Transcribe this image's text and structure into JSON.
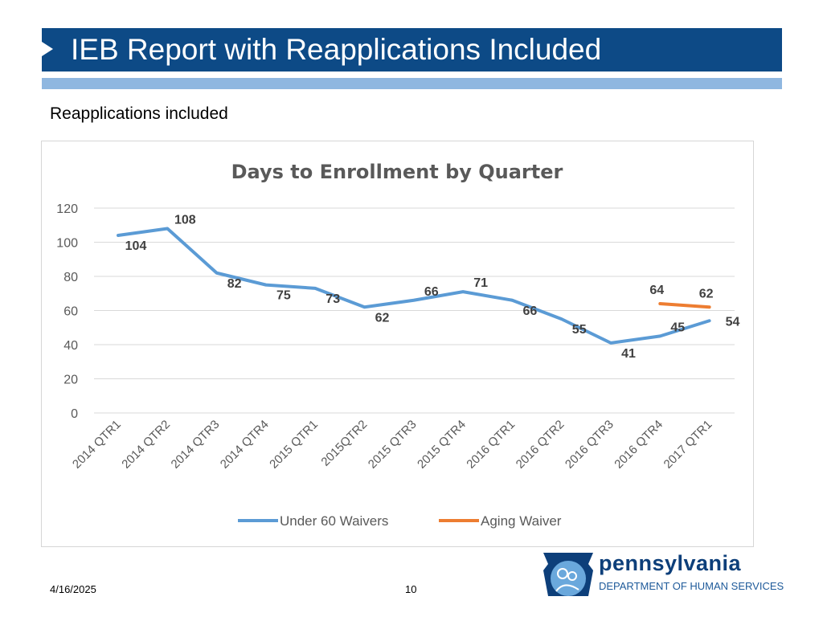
{
  "header": {
    "title": "IEB Report with Reapplications Included"
  },
  "subtitle": "Reapplications included",
  "footer": {
    "date": "4/16/2025",
    "page": "10"
  },
  "logo": {
    "title": "pennsylvania",
    "subtitle": "DEPARTMENT OF HUMAN SERVICES"
  },
  "colors": {
    "header": "#0d4a86",
    "stripe": "#8fb7e0",
    "series1": "#5b9bd5",
    "series2": "#ed7d31"
  },
  "chart_data": {
    "type": "line",
    "title": "Days to Enrollment by Quarter",
    "categories": [
      "2014 QTR1",
      "2014 QTR2",
      "2014 QTR3",
      "2014 QTR4",
      "2015 QTR1",
      "2015QTR2",
      "2015 QTR3",
      "2015 QTR4",
      "2016 QTR1",
      "2016 QTR2",
      "2016 QTR3",
      "2016 QTR4",
      "2017 QTR1"
    ],
    "ylim": [
      0,
      120
    ],
    "yticks": [
      "0",
      "20",
      "40",
      "60",
      "80",
      "100",
      "120"
    ],
    "grid": true,
    "legend": "bottom",
    "series": [
      {
        "name": "Under 60 Waivers",
        "values": [
          104,
          108,
          82,
          75,
          73,
          62,
          66,
          71,
          66,
          55,
          41,
          45,
          54
        ]
      },
      {
        "name": "Aging Waiver",
        "values": [
          null,
          null,
          null,
          null,
          null,
          null,
          null,
          null,
          null,
          null,
          null,
          64,
          62
        ]
      }
    ]
  }
}
